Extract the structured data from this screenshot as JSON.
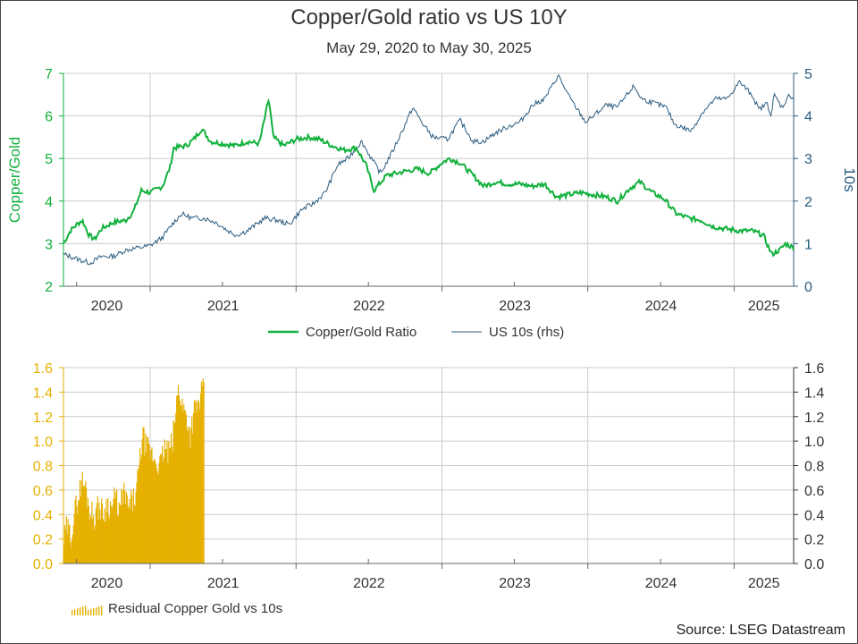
{
  "title": "Copper/Gold ratio vs US 10Y",
  "subtitle": "May 29, 2020 to May 30, 2025",
  "source": "Source: LSEG Datastream",
  "colors": {
    "copper_gold": "#12b13d",
    "us10s": "#2b5b7e",
    "residual": "#e5b000",
    "grid": "#cccccc"
  },
  "chart_data": [
    {
      "type": "line",
      "x_range": [
        "2020-05-29",
        "2025-05-30"
      ],
      "x_tick_labels": [
        "2020",
        "2021",
        "2022",
        "2023",
        "2024",
        "2025"
      ],
      "ylabel_left": "Copper/Gold",
      "ylabel_right": "10s",
      "ylim_left": [
        2,
        7
      ],
      "ylim_right": [
        0,
        5
      ],
      "yticks_left": [
        "2",
        "3",
        "4",
        "5",
        "6",
        "7"
      ],
      "yticks_right": [
        "0",
        "1",
        "2",
        "3",
        "4",
        "5"
      ],
      "grid": true,
      "legend": "bottom-center",
      "series": [
        {
          "name": "Copper/Gold Ratio",
          "axis": "left",
          "points": [
            [
              "2020-05-29",
              3.0
            ],
            [
              "2020-06-15",
              3.3
            ],
            [
              "2020-07-01",
              3.45
            ],
            [
              "2020-07-15",
              3.55
            ],
            [
              "2020-08-01",
              3.2
            ],
            [
              "2020-08-15",
              3.1
            ],
            [
              "2020-09-01",
              3.35
            ],
            [
              "2020-10-01",
              3.5
            ],
            [
              "2020-11-01",
              3.55
            ],
            [
              "2020-11-20",
              3.75
            ],
            [
              "2020-12-10",
              4.25
            ],
            [
              "2021-01-01",
              4.2
            ],
            [
              "2021-02-01",
              4.35
            ],
            [
              "2021-02-20",
              4.8
            ],
            [
              "2021-03-01",
              5.25
            ],
            [
              "2021-04-01",
              5.3
            ],
            [
              "2021-04-20",
              5.45
            ],
            [
              "2021-05-10",
              5.7
            ],
            [
              "2021-06-01",
              5.4
            ],
            [
              "2021-07-01",
              5.35
            ],
            [
              "2021-08-01",
              5.3
            ],
            [
              "2021-09-01",
              5.4
            ],
            [
              "2021-10-01",
              5.35
            ],
            [
              "2021-10-25",
              6.4
            ],
            [
              "2021-11-05",
              5.5
            ],
            [
              "2021-12-01",
              5.3
            ],
            [
              "2022-01-01",
              5.45
            ],
            [
              "2022-02-01",
              5.5
            ],
            [
              "2022-03-01",
              5.45
            ],
            [
              "2022-04-01",
              5.3
            ],
            [
              "2022-05-01",
              5.2
            ],
            [
              "2022-06-01",
              5.25
            ],
            [
              "2022-06-25",
              4.85
            ],
            [
              "2022-07-15",
              4.25
            ],
            [
              "2022-08-15",
              4.6
            ],
            [
              "2022-10-01",
              4.7
            ],
            [
              "2022-11-01",
              4.75
            ],
            [
              "2022-12-01",
              4.65
            ],
            [
              "2023-01-01",
              4.9
            ],
            [
              "2023-01-20",
              5.0
            ],
            [
              "2023-02-15",
              4.9
            ],
            [
              "2023-03-15",
              4.65
            ],
            [
              "2023-04-15",
              4.35
            ],
            [
              "2023-05-15",
              4.45
            ],
            [
              "2023-06-15",
              4.4
            ],
            [
              "2023-07-15",
              4.4
            ],
            [
              "2023-08-15",
              4.35
            ],
            [
              "2023-09-15",
              4.4
            ],
            [
              "2023-10-15",
              4.1
            ],
            [
              "2023-11-15",
              4.15
            ],
            [
              "2023-12-15",
              4.2
            ],
            [
              "2024-01-15",
              4.15
            ],
            [
              "2024-02-15",
              4.1
            ],
            [
              "2024-03-15",
              4.0
            ],
            [
              "2024-04-15",
              4.3
            ],
            [
              "2024-05-10",
              4.45
            ],
            [
              "2024-06-10",
              4.2
            ],
            [
              "2024-07-10",
              4.05
            ],
            [
              "2024-08-10",
              3.7
            ],
            [
              "2024-09-10",
              3.6
            ],
            [
              "2024-10-10",
              3.55
            ],
            [
              "2024-11-10",
              3.4
            ],
            [
              "2024-12-10",
              3.35
            ],
            [
              "2025-01-15",
              3.3
            ],
            [
              "2025-02-15",
              3.3
            ],
            [
              "2025-03-15",
              3.2
            ],
            [
              "2025-04-05",
              2.75
            ],
            [
              "2025-04-25",
              2.85
            ],
            [
              "2025-05-10",
              3.0
            ],
            [
              "2025-05-30",
              2.9
            ]
          ]
        },
        {
          "name": "US 10s (rhs)",
          "axis": "right",
          "points": [
            [
              "2020-05-29",
              0.75
            ],
            [
              "2020-06-15",
              0.7
            ],
            [
              "2020-07-15",
              0.6
            ],
            [
              "2020-08-05",
              0.55
            ],
            [
              "2020-09-01",
              0.7
            ],
            [
              "2020-10-01",
              0.7
            ],
            [
              "2020-11-01",
              0.85
            ],
            [
              "2020-12-01",
              0.9
            ],
            [
              "2021-01-01",
              0.95
            ],
            [
              "2021-02-01",
              1.15
            ],
            [
              "2021-03-01",
              1.5
            ],
            [
              "2021-03-20",
              1.7
            ],
            [
              "2021-04-15",
              1.6
            ],
            [
              "2021-05-15",
              1.6
            ],
            [
              "2021-06-15",
              1.5
            ],
            [
              "2021-07-15",
              1.3
            ],
            [
              "2021-08-05",
              1.2
            ],
            [
              "2021-09-01",
              1.3
            ],
            [
              "2021-10-15",
              1.6
            ],
            [
              "2021-11-15",
              1.55
            ],
            [
              "2021-12-15",
              1.45
            ],
            [
              "2022-01-15",
              1.8
            ],
            [
              "2022-02-15",
              1.95
            ],
            [
              "2022-03-15",
              2.2
            ],
            [
              "2022-04-15",
              2.85
            ],
            [
              "2022-05-10",
              3.0
            ],
            [
              "2022-06-14",
              3.4
            ],
            [
              "2022-07-15",
              2.9
            ],
            [
              "2022-08-01",
              2.65
            ],
            [
              "2022-09-01",
              3.2
            ],
            [
              "2022-10-01",
              3.8
            ],
            [
              "2022-10-20",
              4.2
            ],
            [
              "2022-11-15",
              3.8
            ],
            [
              "2022-12-10",
              3.5
            ],
            [
              "2023-01-15",
              3.45
            ],
            [
              "2023-02-15",
              3.9
            ],
            [
              "2023-03-20",
              3.4
            ],
            [
              "2023-04-15",
              3.4
            ],
            [
              "2023-05-15",
              3.6
            ],
            [
              "2023-06-15",
              3.75
            ],
            [
              "2023-07-15",
              3.85
            ],
            [
              "2023-08-15",
              4.25
            ],
            [
              "2023-09-15",
              4.4
            ],
            [
              "2023-10-19",
              4.95
            ],
            [
              "2023-11-15",
              4.45
            ],
            [
              "2023-12-27",
              3.85
            ],
            [
              "2024-01-15",
              4.0
            ],
            [
              "2024-02-15",
              4.25
            ],
            [
              "2024-03-15",
              4.2
            ],
            [
              "2024-04-25",
              4.7
            ],
            [
              "2024-05-15",
              4.4
            ],
            [
              "2024-06-15",
              4.3
            ],
            [
              "2024-07-15",
              4.2
            ],
            [
              "2024-08-05",
              3.8
            ],
            [
              "2024-09-16",
              3.65
            ],
            [
              "2024-10-15",
              4.1
            ],
            [
              "2024-11-15",
              4.4
            ],
            [
              "2024-12-15",
              4.4
            ],
            [
              "2025-01-14",
              4.8
            ],
            [
              "2025-02-15",
              4.5
            ],
            [
              "2025-03-04",
              4.15
            ],
            [
              "2025-03-25",
              4.3
            ],
            [
              "2025-04-04",
              4.0
            ],
            [
              "2025-04-11",
              4.5
            ],
            [
              "2025-05-01",
              4.2
            ],
            [
              "2025-05-20",
              4.5
            ],
            [
              "2025-05-30",
              4.4
            ]
          ]
        }
      ]
    },
    {
      "type": "bar",
      "x_range": [
        "2020-05-29",
        "2025-05-30"
      ],
      "x_tick_labels": [
        "2020",
        "2021",
        "2022",
        "2023",
        "2024",
        "2025"
      ],
      "ylim_left": [
        0.0,
        1.6
      ],
      "ylim_right": [
        0.0,
        1.6
      ],
      "yticks_left": [
        "0.0",
        "0.2",
        "0.4",
        "0.6",
        "0.8",
        "1.0",
        "1.2",
        "1.4",
        "1.6"
      ],
      "yticks_right": [
        "0.0",
        "0.2",
        "0.4",
        "0.6",
        "0.8",
        "1.0",
        "1.2",
        "1.4",
        "1.6"
      ],
      "grid": true,
      "legend": "bottom-left",
      "series": [
        {
          "name": "Residual Copper Gold vs 10s",
          "points": [
            [
              "2020-05-29",
              0.18
            ],
            [
              "2020-06-05",
              0.3
            ],
            [
              "2020-06-15",
              0.22
            ],
            [
              "2020-06-25",
              0.42
            ],
            [
              "2020-07-05",
              0.55
            ],
            [
              "2020-07-12",
              0.68
            ],
            [
              "2020-07-22",
              0.62
            ],
            [
              "2020-08-01",
              0.45
            ],
            [
              "2020-08-12",
              0.38
            ],
            [
              "2020-08-25",
              0.48
            ],
            [
              "2020-09-05",
              0.4
            ],
            [
              "2020-09-15",
              0.5
            ],
            [
              "2020-09-25",
              0.45
            ],
            [
              "2020-10-05",
              0.55
            ],
            [
              "2020-10-15",
              0.42
            ],
            [
              "2020-10-25",
              0.6
            ],
            [
              "2020-11-05",
              0.45
            ],
            [
              "2020-11-15",
              0.5
            ],
            [
              "2020-11-25",
              0.55
            ],
            [
              "2020-12-05",
              0.85
            ],
            [
              "2020-12-12",
              1.05
            ],
            [
              "2020-12-20",
              0.95
            ],
            [
              "2021-01-01",
              0.9
            ],
            [
              "2021-01-12",
              0.85
            ],
            [
              "2021-01-25",
              0.8
            ],
            [
              "2021-02-05",
              0.95
            ],
            [
              "2021-02-15",
              0.9
            ],
            [
              "2021-02-25",
              1.0
            ],
            [
              "2021-03-05",
              1.25
            ],
            [
              "2021-03-12",
              1.45
            ],
            [
              "2021-03-20",
              1.3
            ],
            [
              "2021-04-01",
              1.2
            ],
            [
              "2021-04-10",
              1.05
            ],
            [
              "2021-04-20",
              1.25
            ],
            [
              "2021-05-01",
              1.3
            ],
            [
              "2021-05-10",
              1.42
            ],
            [
              "2021-05-15",
              1.38
            ]
          ]
        }
      ]
    }
  ]
}
